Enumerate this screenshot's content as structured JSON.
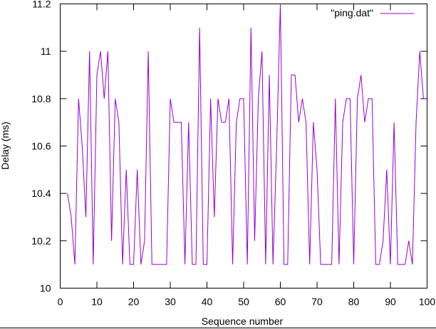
{
  "chart_data": {
    "type": "line",
    "title": "",
    "xlabel": "Sequence number",
    "ylabel": "Delay (ms)",
    "xlim": [
      0,
      100
    ],
    "ylim": [
      10,
      11.2
    ],
    "xticks": [
      "0",
      "10",
      "20",
      "30",
      "40",
      "50",
      "60",
      "70",
      "80",
      "90",
      "100"
    ],
    "yticks": [
      "10",
      "10.2",
      "10.4",
      "10.6",
      "10.8",
      "11",
      "11.2"
    ],
    "grid": false,
    "legend_position": "top-right",
    "series": [
      {
        "name": "\"ping.dat\"",
        "color": "#9400d3",
        "x": [
          2,
          3,
          4,
          5,
          6,
          7,
          8,
          9,
          10,
          11,
          12,
          13,
          14,
          15,
          16,
          17,
          18,
          19,
          20,
          21,
          22,
          23,
          24,
          25,
          26,
          27,
          28,
          29,
          30,
          31,
          32,
          33,
          34,
          35,
          36,
          37,
          38,
          39,
          40,
          41,
          42,
          43,
          44,
          45,
          46,
          47,
          48,
          49,
          50,
          51,
          52,
          53,
          54,
          55,
          56,
          57,
          58,
          59,
          60,
          61,
          62,
          63,
          64,
          65,
          66,
          67,
          68,
          69,
          70,
          71,
          72,
          73,
          74,
          75,
          76,
          77,
          78,
          79,
          80,
          81,
          82,
          83,
          84,
          85,
          86,
          87,
          88,
          89,
          90,
          91,
          92,
          93,
          94,
          95,
          96,
          97,
          98,
          99,
          100
        ],
        "y": [
          10.4,
          10.3,
          10.1,
          10.8,
          10.6,
          10.3,
          11.0,
          10.1,
          10.9,
          11.0,
          10.8,
          11.0,
          10.2,
          10.8,
          10.7,
          10.1,
          10.5,
          10.1,
          10.1,
          10.5,
          10.1,
          10.2,
          11.0,
          10.1,
          10.1,
          10.1,
          10.1,
          10.1,
          10.8,
          10.7,
          10.7,
          10.7,
          10.1,
          10.7,
          10.1,
          10.1,
          11.1,
          10.1,
          10.1,
          10.8,
          10.3,
          10.8,
          10.7,
          10.7,
          10.8,
          10.1,
          10.7,
          10.8,
          10.8,
          10.1,
          11.1,
          10.2,
          10.8,
          11.0,
          10.1,
          10.9,
          10.1,
          10.6,
          11.2,
          10.1,
          10.1,
          10.9,
          10.9,
          10.7,
          10.8,
          10.7,
          10.1,
          10.7,
          10.5,
          10.1,
          10.1,
          10.1,
          10.1,
          10.8,
          10.1,
          10.7,
          10.8,
          10.8,
          10.1,
          10.8,
          10.9,
          10.7,
          10.8,
          10.8,
          10.1,
          10.1,
          10.2,
          10.5,
          10.1,
          10.7,
          10.1,
          10.1,
          10.1,
          10.2,
          10.1,
          10.7,
          11.0,
          10.8,
          10.8
        ]
      }
    ]
  }
}
